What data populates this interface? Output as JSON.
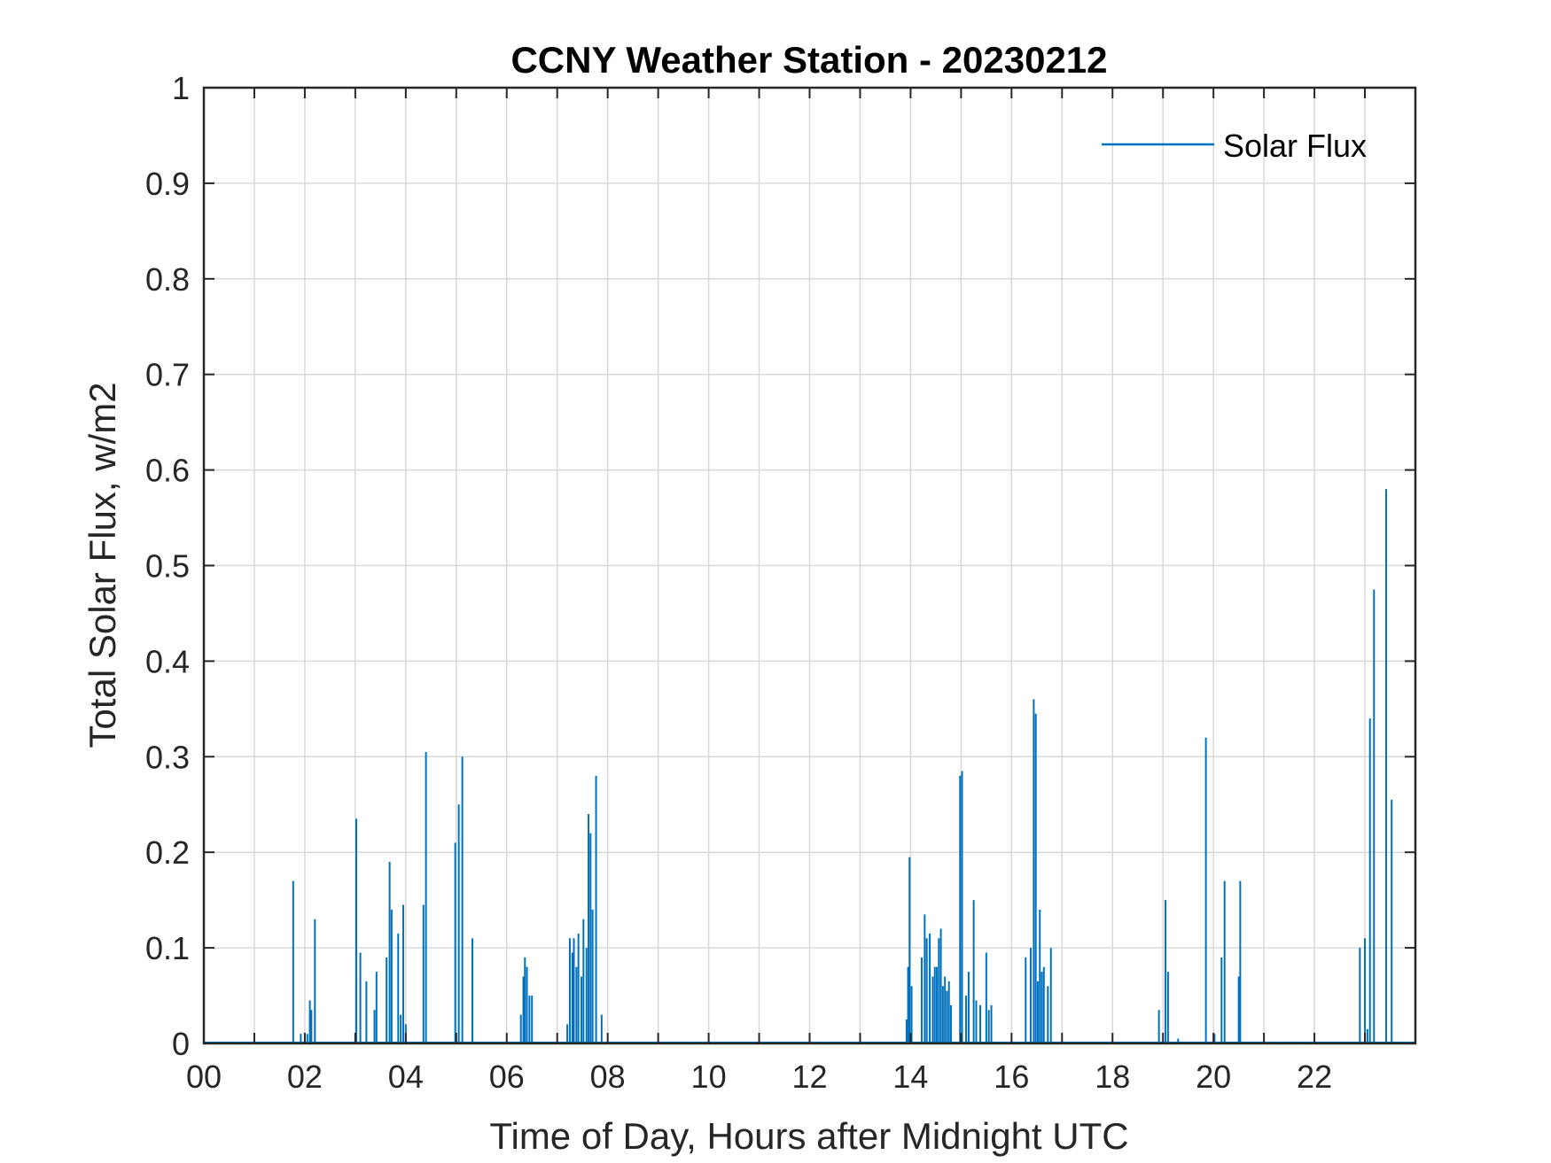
{
  "chart_data": {
    "type": "line",
    "title": "CCNY Weather Station - 20230212",
    "xlabel": "Time of Day, Hours after Midnight UTC",
    "ylabel": "Total Solar Flux, w/m2",
    "xlim": [
      0,
      24
    ],
    "ylim": [
      0,
      1
    ],
    "x_ticks": [
      0,
      2,
      4,
      6,
      8,
      10,
      12,
      14,
      16,
      18,
      20,
      22
    ],
    "x_tick_labels": [
      "00",
      "02",
      "04",
      "06",
      "08",
      "10",
      "12",
      "14",
      "16",
      "18",
      "20",
      "22"
    ],
    "y_ticks": [
      0,
      0.1,
      0.2,
      0.3,
      0.4,
      0.5,
      0.6,
      0.7,
      0.8,
      0.9,
      1
    ],
    "y_tick_labels": [
      "0",
      "0.1",
      "0.2",
      "0.3",
      "0.4",
      "0.5",
      "0.6",
      "0.7",
      "0.8",
      "0.9",
      "1"
    ],
    "grid": true,
    "legend": {
      "position": "top-right",
      "entries": [
        "Solar Flux"
      ]
    },
    "colors": {
      "series": "#0072bd",
      "grid": "#d9d9d9",
      "axes": "#262626"
    },
    "series": [
      {
        "name": "Solar Flux",
        "spikes": [
          {
            "t": 1.77,
            "v": 0.17
          },
          {
            "t": 1.92,
            "v": 0.01
          },
          {
            "t": 2.05,
            "v": 0.01
          },
          {
            "t": 2.1,
            "v": 0.045
          },
          {
            "t": 2.13,
            "v": 0.035
          },
          {
            "t": 2.2,
            "v": 0.13
          },
          {
            "t": 3.02,
            "v": 0.235
          },
          {
            "t": 3.1,
            "v": 0.095
          },
          {
            "t": 3.22,
            "v": 0.065
          },
          {
            "t": 3.38,
            "v": 0.035
          },
          {
            "t": 3.42,
            "v": 0.075
          },
          {
            "t": 3.62,
            "v": 0.09
          },
          {
            "t": 3.68,
            "v": 0.19
          },
          {
            "t": 3.72,
            "v": 0.14
          },
          {
            "t": 3.85,
            "v": 0.115
          },
          {
            "t": 3.9,
            "v": 0.03
          },
          {
            "t": 3.95,
            "v": 0.145
          },
          {
            "t": 4.0,
            "v": 0.02
          },
          {
            "t": 4.35,
            "v": 0.145
          },
          {
            "t": 4.4,
            "v": 0.305
          },
          {
            "t": 4.98,
            "v": 0.21
          },
          {
            "t": 5.05,
            "v": 0.25
          },
          {
            "t": 5.12,
            "v": 0.3
          },
          {
            "t": 5.32,
            "v": 0.11
          },
          {
            "t": 6.28,
            "v": 0.03
          },
          {
            "t": 6.33,
            "v": 0.07
          },
          {
            "t": 6.36,
            "v": 0.09
          },
          {
            "t": 6.4,
            "v": 0.08
          },
          {
            "t": 6.45,
            "v": 0.05
          },
          {
            "t": 6.5,
            "v": 0.05
          },
          {
            "t": 7.2,
            "v": 0.02
          },
          {
            "t": 7.25,
            "v": 0.11
          },
          {
            "t": 7.3,
            "v": 0.095
          },
          {
            "t": 7.33,
            "v": 0.11
          },
          {
            "t": 7.38,
            "v": 0.08
          },
          {
            "t": 7.42,
            "v": 0.115
          },
          {
            "t": 7.48,
            "v": 0.07
          },
          {
            "t": 7.52,
            "v": 0.13
          },
          {
            "t": 7.58,
            "v": 0.1
          },
          {
            "t": 7.62,
            "v": 0.24
          },
          {
            "t": 7.66,
            "v": 0.22
          },
          {
            "t": 7.7,
            "v": 0.14
          },
          {
            "t": 7.77,
            "v": 0.28
          },
          {
            "t": 7.88,
            "v": 0.03
          },
          {
            "t": 13.92,
            "v": 0.025
          },
          {
            "t": 13.95,
            "v": 0.08
          },
          {
            "t": 13.98,
            "v": 0.195
          },
          {
            "t": 14.02,
            "v": 0.06
          },
          {
            "t": 14.22,
            "v": 0.09
          },
          {
            "t": 14.28,
            "v": 0.135
          },
          {
            "t": 14.32,
            "v": 0.11
          },
          {
            "t": 14.38,
            "v": 0.115
          },
          {
            "t": 14.44,
            "v": 0.07
          },
          {
            "t": 14.48,
            "v": 0.08
          },
          {
            "t": 14.52,
            "v": 0.08
          },
          {
            "t": 14.56,
            "v": 0.11
          },
          {
            "t": 14.6,
            "v": 0.12
          },
          {
            "t": 14.64,
            "v": 0.06
          },
          {
            "t": 14.68,
            "v": 0.07
          },
          {
            "t": 14.72,
            "v": 0.055
          },
          {
            "t": 14.76,
            "v": 0.065
          },
          {
            "t": 14.8,
            "v": 0.04
          },
          {
            "t": 14.98,
            "v": 0.28
          },
          {
            "t": 15.02,
            "v": 0.285
          },
          {
            "t": 15.1,
            "v": 0.05
          },
          {
            "t": 15.15,
            "v": 0.075
          },
          {
            "t": 15.25,
            "v": 0.15
          },
          {
            "t": 15.3,
            "v": 0.045
          },
          {
            "t": 15.38,
            "v": 0.04
          },
          {
            "t": 15.5,
            "v": 0.095
          },
          {
            "t": 15.55,
            "v": 0.035
          },
          {
            "t": 15.6,
            "v": 0.04
          },
          {
            "t": 16.28,
            "v": 0.09
          },
          {
            "t": 16.38,
            "v": 0.1
          },
          {
            "t": 16.44,
            "v": 0.36
          },
          {
            "t": 16.48,
            "v": 0.345
          },
          {
            "t": 16.52,
            "v": 0.065
          },
          {
            "t": 16.56,
            "v": 0.14
          },
          {
            "t": 16.6,
            "v": 0.075
          },
          {
            "t": 16.64,
            "v": 0.08
          },
          {
            "t": 16.72,
            "v": 0.06
          },
          {
            "t": 16.78,
            "v": 0.1
          },
          {
            "t": 18.92,
            "v": 0.035
          },
          {
            "t": 19.05,
            "v": 0.15
          },
          {
            "t": 19.1,
            "v": 0.075
          },
          {
            "t": 19.3,
            "v": 0.005
          },
          {
            "t": 19.85,
            "v": 0.32
          },
          {
            "t": 20.02,
            "v": 0.01
          },
          {
            "t": 20.16,
            "v": 0.09
          },
          {
            "t": 20.22,
            "v": 0.17
          },
          {
            "t": 20.5,
            "v": 0.07
          },
          {
            "t": 20.53,
            "v": 0.17
          },
          {
            "t": 22.9,
            "v": 0.1
          },
          {
            "t": 23.0,
            "v": 0.11
          },
          {
            "t": 23.05,
            "v": 0.015
          },
          {
            "t": 23.1,
            "v": 0.34
          },
          {
            "t": 23.18,
            "v": 0.475
          },
          {
            "t": 23.42,
            "v": 0.58
          },
          {
            "t": 23.53,
            "v": 0.255
          }
        ]
      }
    ]
  }
}
